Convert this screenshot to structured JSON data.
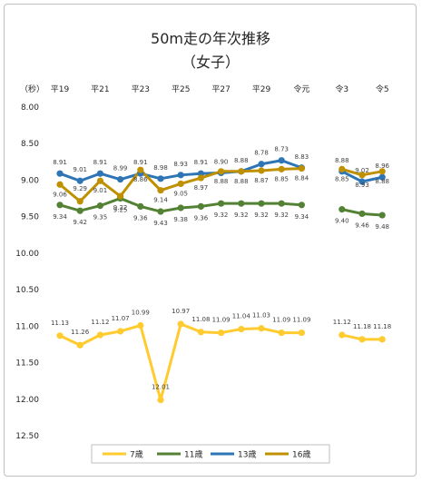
{
  "chart_data": {
    "type": "line",
    "title": "50m走の年次推移",
    "subtitle": "（女子）",
    "ylabel": "（秒）",
    "xlabel": "",
    "y_inverted": true,
    "ylim": [
      8.0,
      12.5
    ],
    "y_ticks": [
      "8.00",
      "8.50",
      "9.00",
      "9.50",
      "10.00",
      "10.50",
      "11.00",
      "11.50",
      "12.00",
      "12.50"
    ],
    "x_tick_labels": [
      "平19",
      "平21",
      "平23",
      "平25",
      "平27",
      "平29",
      "令元",
      "令3",
      "令5"
    ],
    "categories": [
      "平19",
      "平20",
      "平21",
      "平22",
      "平23",
      "平24",
      "平25",
      "平26",
      "平27",
      "平28",
      "平29",
      "平30",
      "令元",
      "令2",
      "令3",
      "令4",
      "令5"
    ],
    "legend_position": "bottom",
    "grid": false,
    "series": [
      {
        "name": "7歳",
        "color": "#FFCB2F",
        "values": [
          11.13,
          11.26,
          11.12,
          11.07,
          10.99,
          12.01,
          10.97,
          11.08,
          11.09,
          11.04,
          11.03,
          11.09,
          11.09,
          null,
          11.12,
          11.18,
          11.18
        ],
        "labels": [
          "11.13",
          "11.26",
          "11.12",
          "11.07",
          "10.99",
          "12.01",
          "10.97",
          "11.08",
          "11.09",
          "11.04",
          "11.03",
          "11.09",
          "11.09",
          null,
          "11.12",
          "11.18",
          "11.18"
        ]
      },
      {
        "name": "11歳",
        "color": "#548235",
        "values": [
          9.34,
          9.42,
          9.35,
          9.25,
          9.36,
          9.43,
          9.38,
          9.36,
          9.32,
          9.32,
          9.32,
          9.32,
          9.34,
          null,
          9.4,
          9.46,
          9.48
        ],
        "labels": [
          "9.34",
          "9.42",
          "9.35",
          "9.25",
          "9.36",
          "9.43",
          "9.38",
          "9.36",
          "9.32",
          "9.32",
          "9.32",
          "9.32",
          "9.34",
          null,
          "9.40",
          "9.46",
          "9.48"
        ]
      },
      {
        "name": "13歳",
        "color": "#2E75B6",
        "values": [
          8.91,
          9.01,
          8.91,
          8.99,
          8.91,
          8.98,
          8.93,
          8.91,
          8.9,
          8.88,
          8.78,
          8.73,
          8.83,
          null,
          8.88,
          9.02,
          8.96
        ],
        "labels": [
          "8.91",
          "9.01",
          "8.91",
          "8.99",
          "8.91",
          "8.98",
          "8.93",
          "8.91",
          "8.90",
          "8.88",
          "8.78",
          "8.73",
          "8.83",
          null,
          "8.88",
          "9.02",
          "8.96"
        ]
      },
      {
        "name": "16歳",
        "color": "#BF9000",
        "values": [
          9.06,
          9.29,
          9.01,
          9.22,
          8.86,
          9.14,
          9.05,
          8.97,
          8.88,
          8.88,
          8.87,
          8.85,
          8.84,
          null,
          8.85,
          8.93,
          8.88
        ],
        "labels": [
          "9.06",
          "9.29",
          "9.01",
          "9.22",
          "8.86",
          "9.14",
          "9.05",
          "8.97",
          "8.88",
          "8.88",
          "8.87",
          "8.85",
          "8.84",
          null,
          "8.85",
          "8.93",
          "8.88"
        ]
      }
    ]
  }
}
